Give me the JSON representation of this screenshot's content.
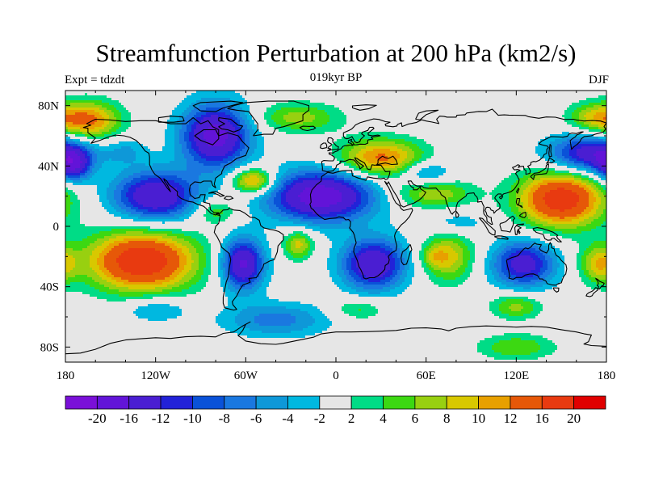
{
  "chart_data": {
    "type": "heatmap",
    "title": "Streamfunction Perturbation at 200 hPa (km2/s)",
    "left_string": "Expt = tdzdt",
    "center_string": "019kyr BP",
    "right_string": "DJF",
    "x_ticks": [
      {
        "value": -180,
        "label": "180"
      },
      {
        "value": -120,
        "label": "120W"
      },
      {
        "value": -60,
        "label": "60W"
      },
      {
        "value": 0,
        "label": "0"
      },
      {
        "value": 60,
        "label": "60E"
      },
      {
        "value": 120,
        "label": "120E"
      },
      {
        "value": 180,
        "label": "180"
      }
    ],
    "y_ticks": [
      {
        "value": 80,
        "label": "80N"
      },
      {
        "value": 40,
        "label": "40N"
      },
      {
        "value": 0,
        "label": "0"
      },
      {
        "value": -40,
        "label": "40S"
      },
      {
        "value": -80,
        "label": "80S"
      }
    ],
    "xlim": [
      -180,
      180
    ],
    "ylim": [
      -90,
      90
    ],
    "levels": [
      -22,
      -20,
      -16,
      -12,
      -10,
      -8,
      -6,
      -4,
      -2,
      2,
      4,
      6,
      8,
      10,
      12,
      16,
      20,
      22
    ],
    "colors": [
      "#7a10d8",
      "#6214d8",
      "#4a1ed2",
      "#2222d8",
      "#0a52d8",
      "#1a78e0",
      "#0e98d8",
      "#00b8e0",
      "#e6e6e6",
      "#00dc86",
      "#3cd812",
      "#98d010",
      "#d8c800",
      "#e8a000",
      "#e65808",
      "#e83a10",
      "#e00000"
    ],
    "colorbar_labels": [
      {
        "level_index": 1,
        "label": "-20"
      },
      {
        "level_index": 2,
        "label": "-16"
      },
      {
        "level_index": 3,
        "label": "-12"
      },
      {
        "level_index": 4,
        "label": "-10"
      },
      {
        "level_index": 5,
        "label": "-8"
      },
      {
        "level_index": 6,
        "label": "-6"
      },
      {
        "level_index": 7,
        "label": "-4"
      },
      {
        "level_index": 8,
        "label": "-2"
      },
      {
        "level_index": 9,
        "label": "2"
      },
      {
        "level_index": 10,
        "label": "4"
      },
      {
        "level_index": 11,
        "label": "6"
      },
      {
        "level_index": 12,
        "label": "8"
      },
      {
        "level_index": 13,
        "label": "10"
      },
      {
        "level_index": 14,
        "label": "12"
      },
      {
        "level_index": 15,
        "label": "16"
      },
      {
        "level_index": 16,
        "label": "20"
      }
    ],
    "features": [
      {
        "name": "high-central-pacific-south",
        "lon": -129,
        "lat": -23,
        "value": 20,
        "sx": 25,
        "sy": 14
      },
      {
        "name": "high-west-pacific-north",
        "lon": 150,
        "lat": 18,
        "value": 19,
        "sx": 20,
        "sy": 13
      },
      {
        "name": "high-alaska",
        "lon": -165,
        "lat": 70,
        "value": 13,
        "sx": 15,
        "sy": 9
      },
      {
        "name": "high-europe",
        "lon": 30,
        "lat": 45,
        "value": 13,
        "sx": 20,
        "sy": 9
      },
      {
        "name": "high-atlantic",
        "lon": -55,
        "lat": 30,
        "value": 13,
        "sx": 10,
        "sy": 6
      },
      {
        "name": "high-south-atlantic",
        "lon": -25,
        "lat": -12,
        "value": 9,
        "sx": 7,
        "sy": 7
      },
      {
        "name": "high-north-atlantic",
        "lon": -25,
        "lat": 72,
        "value": 7,
        "sx": 20,
        "sy": 7
      },
      {
        "name": "high-caribbean",
        "lon": -80,
        "lat": 10,
        "value": 6,
        "sx": 10,
        "sy": 6
      },
      {
        "name": "high-indian-ocean-north",
        "lon": 65,
        "lat": 22,
        "value": 8,
        "sx": 18,
        "sy": 7
      },
      {
        "name": "high-indian-ocean-south",
        "lon": 75,
        "lat": -20,
        "value": 9,
        "sx": 12,
        "sy": 12
      },
      {
        "name": "high-south-pacific-east",
        "lon": 175,
        "lat": -25,
        "value": 9,
        "sx": 9,
        "sy": 9
      },
      {
        "name": "high-arctic-east",
        "lon": 170,
        "lat": 72,
        "value": 7,
        "sx": 12,
        "sy": 7
      },
      {
        "name": "high-antarctic",
        "lon": 120,
        "lat": -80,
        "value": 6,
        "sx": 18,
        "sy": 6
      },
      {
        "name": "high-southern-ocean-east",
        "lon": 120,
        "lat": -53,
        "value": 7,
        "sx": 12,
        "sy": 6
      },
      {
        "name": "high-southern-ocean-west",
        "lon": 15,
        "lat": -55,
        "value": 5,
        "sx": 12,
        "sy": 5
      },
      {
        "name": "high-south-indian",
        "lon": 65,
        "lat": -20,
        "value": 4,
        "sx": 6,
        "sy": 5
      },
      {
        "name": "low-canada",
        "lon": -80,
        "lat": 60,
        "value": -18,
        "sx": 16,
        "sy": 15
      },
      {
        "name": "low-east-pacific",
        "lon": -120,
        "lat": 20,
        "value": -16,
        "sx": 20,
        "sy": 12
      },
      {
        "name": "low-atlantic-africa",
        "lon": -10,
        "lat": 20,
        "value": -19,
        "sx": 25,
        "sy": 12
      },
      {
        "name": "low-south-america",
        "lon": -62,
        "lat": -25,
        "value": -17,
        "sx": 10,
        "sy": 12
      },
      {
        "name": "low-south-africa",
        "lon": 25,
        "lat": -25,
        "value": -16,
        "sx": 15,
        "sy": 12
      },
      {
        "name": "low-australia",
        "lon": 125,
        "lat": -25,
        "value": -14,
        "sx": 15,
        "sy": 11
      },
      {
        "name": "low-north-pacific-east",
        "lon": 170,
        "lat": 48,
        "value": -15,
        "sx": 20,
        "sy": 9
      },
      {
        "name": "low-north-pacific-west",
        "lon": -175,
        "lat": 40,
        "value": -12,
        "sx": 8,
        "sy": 8
      },
      {
        "name": "low-southern-ocean",
        "lon": -40,
        "lat": -62,
        "value": -7,
        "sx": 25,
        "sy": 8
      },
      {
        "name": "low-arabia",
        "lon": 60,
        "lat": 35,
        "value": -7,
        "sx": 12,
        "sy": 6
      },
      {
        "name": "low-indian-ocean",
        "lon": 80,
        "lat": 2,
        "value": -4,
        "sx": 15,
        "sy": 6
      },
      {
        "name": "low-southeast-pacific",
        "lon": -120,
        "lat": -55,
        "value": -5,
        "sx": 15,
        "sy": 6
      },
      {
        "name": "low-north-pacific-central",
        "lon": -140,
        "lat": 50,
        "value": -4,
        "sx": 10,
        "sy": 6
      }
    ]
  }
}
